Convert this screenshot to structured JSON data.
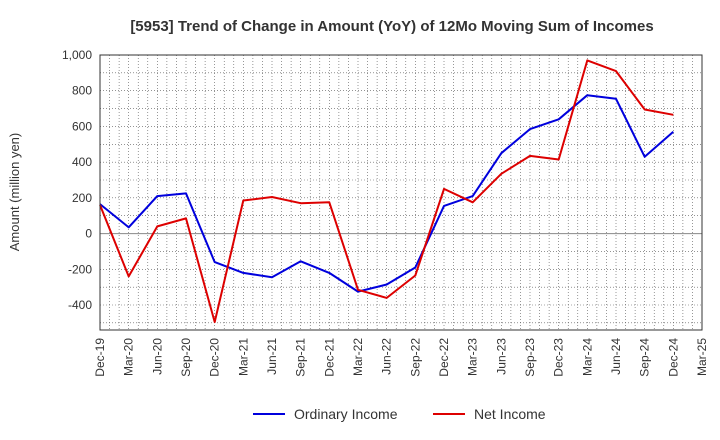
{
  "chart_data": {
    "type": "line",
    "title": "[5953]  Trend of Change in Amount (YoY) of 12Mo Moving Sum of Incomes",
    "xlabel": "",
    "ylabel": "Amount (million yen)",
    "ylim": [
      -540,
      1000
    ],
    "yticks": [
      -400,
      -200,
      0,
      200,
      400,
      600,
      800,
      1000
    ],
    "ytick_labels": [
      "-400",
      "-200",
      "0",
      "200",
      "400",
      "600",
      "800",
      "1,000"
    ],
    "categories": [
      "Dec-19",
      "Mar-20",
      "Jun-20",
      "Sep-20",
      "Dec-20",
      "Mar-21",
      "Jun-21",
      "Sep-21",
      "Dec-21",
      "Mar-22",
      "Jun-22",
      "Sep-22",
      "Dec-22",
      "Mar-23",
      "Jun-23",
      "Sep-23",
      "Dec-23",
      "Mar-24",
      "Jun-24",
      "Sep-24",
      "Dec-24",
      "Mar-25"
    ],
    "series": [
      {
        "name": "Ordinary Income",
        "color": "#0000dd",
        "values": [
          165,
          35,
          210,
          225,
          -160,
          -220,
          -245,
          -155,
          -220,
          -325,
          -285,
          -190,
          155,
          210,
          450,
          585,
          640,
          775,
          755,
          430,
          570,
          null
        ]
      },
      {
        "name": "Net Income",
        "color": "#dd0000",
        "values": [
          160,
          -240,
          40,
          85,
          -495,
          185,
          205,
          170,
          175,
          -315,
          -360,
          -235,
          250,
          175,
          335,
          435,
          415,
          970,
          910,
          695,
          665,
          null
        ]
      }
    ],
    "grid": true,
    "legend": "bottom"
  }
}
